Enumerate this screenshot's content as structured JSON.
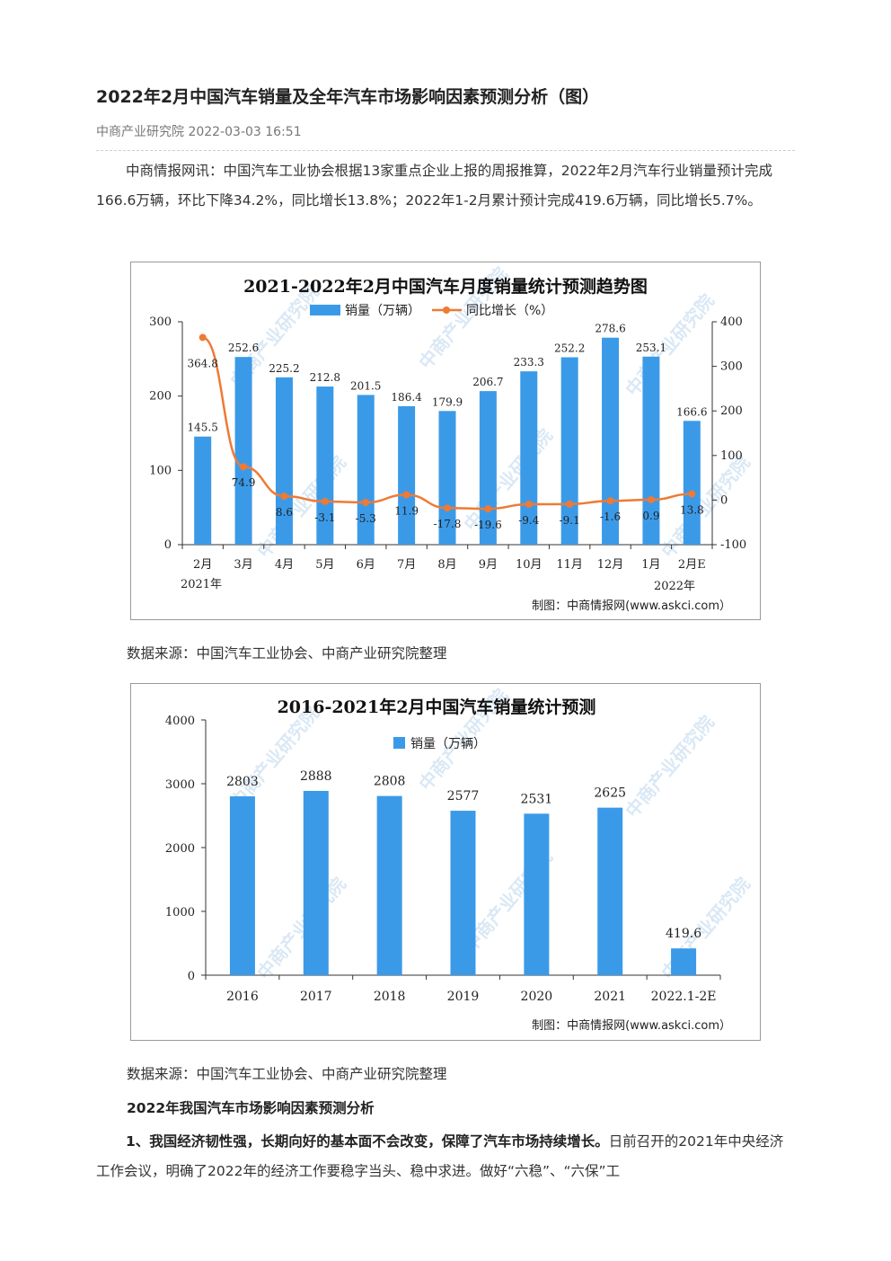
{
  "article": {
    "title": "2022年2月中国汽车销量及全年汽车市场影响因素预测分析（图）",
    "meta": "中商产业研究院 2022-03-03 16:51",
    "intro": "中商情报网讯：中国汽车工业协会根据13家重点企业上报的周报推算，2022年2月汽车行业销量预计完成166.6万辆，环比下降34.2%，同比增长13.8%；2022年1-2月累计预计完成419.6万辆，同比增长5.7%。",
    "caption1": "数据来源：中国汽车工业协会、中商产业研究院整理",
    "caption2": "数据来源：中国汽车工业协会、中商产业研究院整理",
    "section_heading": "2022年我国汽车市场影响因素预测分析",
    "point1_bold": "1、我国经济韧性强，长期向好的基本面不会改变，保障了汽车市场持续增长。",
    "point1_text": "日前召开的2021年中央经济工作会议，明确了2022年的经济工作要稳字当头、稳中求进。做好“六稳”、“六保”工"
  },
  "watermark": {
    "text": "中商产业研究院"
  },
  "chart_data": [
    {
      "type": "bar+line",
      "title": "2021-2022年2月中国汽车月度销量统计预测趋势图",
      "categories": [
        "2月",
        "3月",
        "4月",
        "5月",
        "6月",
        "7月",
        "8月",
        "9月",
        "10月",
        "11月",
        "12月",
        "1月",
        "2月E"
      ],
      "year_labels": [
        "2021年",
        "2022年"
      ],
      "series": [
        {
          "name": "销量（万辆）",
          "type": "bar",
          "color": "#3b9ae8",
          "values": [
            145.5,
            252.6,
            225.2,
            212.8,
            201.5,
            186.4,
            179.9,
            206.7,
            233.3,
            252.2,
            278.6,
            253.1,
            166.6
          ],
          "labels": [
            "145.5",
            "252.6",
            "225.2",
            "212.8",
            "201.5",
            "186.4",
            "179.9",
            "206.7",
            "233.3",
            "252.2",
            "278.6",
            "253.1",
            "166.6"
          ]
        },
        {
          "name": "同比增长（%）",
          "type": "line",
          "color": "#ee7a35",
          "values": [
            364.8,
            74.9,
            8.6,
            -3.1,
            -5.3,
            11.9,
            -17.8,
            -19.6,
            -9.4,
            -9.1,
            -1.6,
            0.9,
            13.8
          ],
          "labels": [
            "364.8",
            "74.9",
            "8.6",
            "-3.1",
            "-5.3",
            "11.9",
            "-17.8",
            "-19.6",
            "-9.4",
            "-9.1",
            "-1.6",
            "0.9",
            "13.8"
          ]
        }
      ],
      "y_left": {
        "min": 0,
        "max": 300,
        "ticks": [
          "0",
          "100",
          "200",
          "300"
        ]
      },
      "y_right": {
        "min": -100,
        "max": 400,
        "ticks": [
          "-100",
          "0",
          "100",
          "200",
          "300",
          "400"
        ]
      },
      "credit": "制图：中商情报网(www.askci.com）"
    },
    {
      "type": "bar",
      "title": "2016-2021年2月中国汽车销量统计预测",
      "categories": [
        "2016",
        "2017",
        "2018",
        "2019",
        "2020",
        "2021",
        "2022.1-2E"
      ],
      "series": [
        {
          "name": "销量（万辆）",
          "color": "#3b9ae8",
          "values": [
            2803,
            2888,
            2808,
            2577,
            2531,
            2625,
            419.6
          ],
          "labels": [
            "2803",
            "2888",
            "2808",
            "2577",
            "2531",
            "2625",
            "419.6"
          ]
        }
      ],
      "ylim": [
        0,
        4000
      ],
      "y_ticks": [
        "0",
        "1000",
        "2000",
        "3000",
        "4000"
      ],
      "credit": "制图：中商情报网(www.askci.com）"
    }
  ]
}
